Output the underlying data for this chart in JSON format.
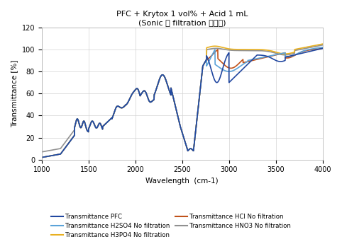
{
  "title_line1": "PFC + Krytox 1 vol% + Acid 1 mL",
  "title_line2": "(Sonic 후 filtration 미실시)",
  "xlabel": "Wavelength  (cm-1)",
  "ylabel": "Transmittance [%]",
  "xlim": [
    1000,
    4000
  ],
  "ylim": [
    0,
    120
  ],
  "yticks": [
    0,
    20,
    40,
    60,
    80,
    100,
    120
  ],
  "xticks": [
    1000,
    1500,
    2000,
    2500,
    3000,
    3500,
    4000
  ],
  "legend": [
    {
      "label": "Transmittance PFC",
      "color": "#2147a0"
    },
    {
      "label": "Transmittance H2SO4 No filtration",
      "color": "#5ba3d9"
    },
    {
      "label": "Transmittance H3PO4 No filtration",
      "color": "#e8b020"
    },
    {
      "label": "Transmittance HCl No filtration",
      "color": "#c0521a"
    },
    {
      "label": "Transmittance HNO3 No filtration",
      "color": "#909090"
    }
  ],
  "background_color": "#ffffff",
  "grid_color": "#d3d3d3"
}
